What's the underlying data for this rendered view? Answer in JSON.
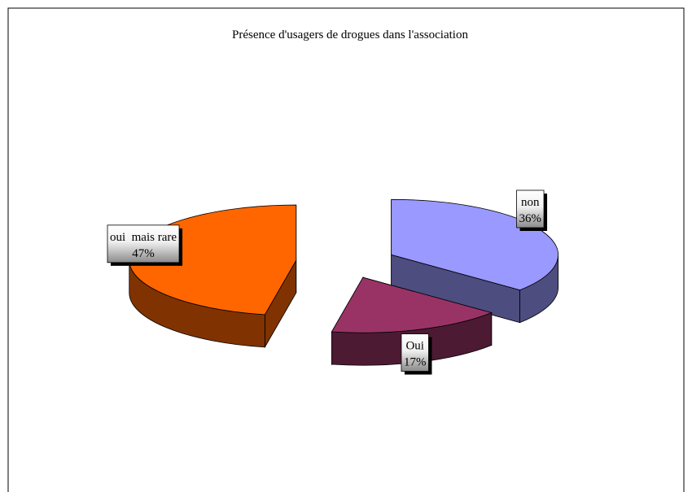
{
  "chart_data": {
    "type": "pie3d",
    "title": "Présence d'usagers de drogues dans l'association",
    "categories": [
      "non",
      "Oui",
      "oui  mais rare"
    ],
    "values": [
      36,
      17,
      47
    ],
    "value_labels": [
      "36%",
      "17%",
      "47%"
    ],
    "colors": [
      "#9999ff",
      "#993366",
      "#ff6600"
    ]
  }
}
